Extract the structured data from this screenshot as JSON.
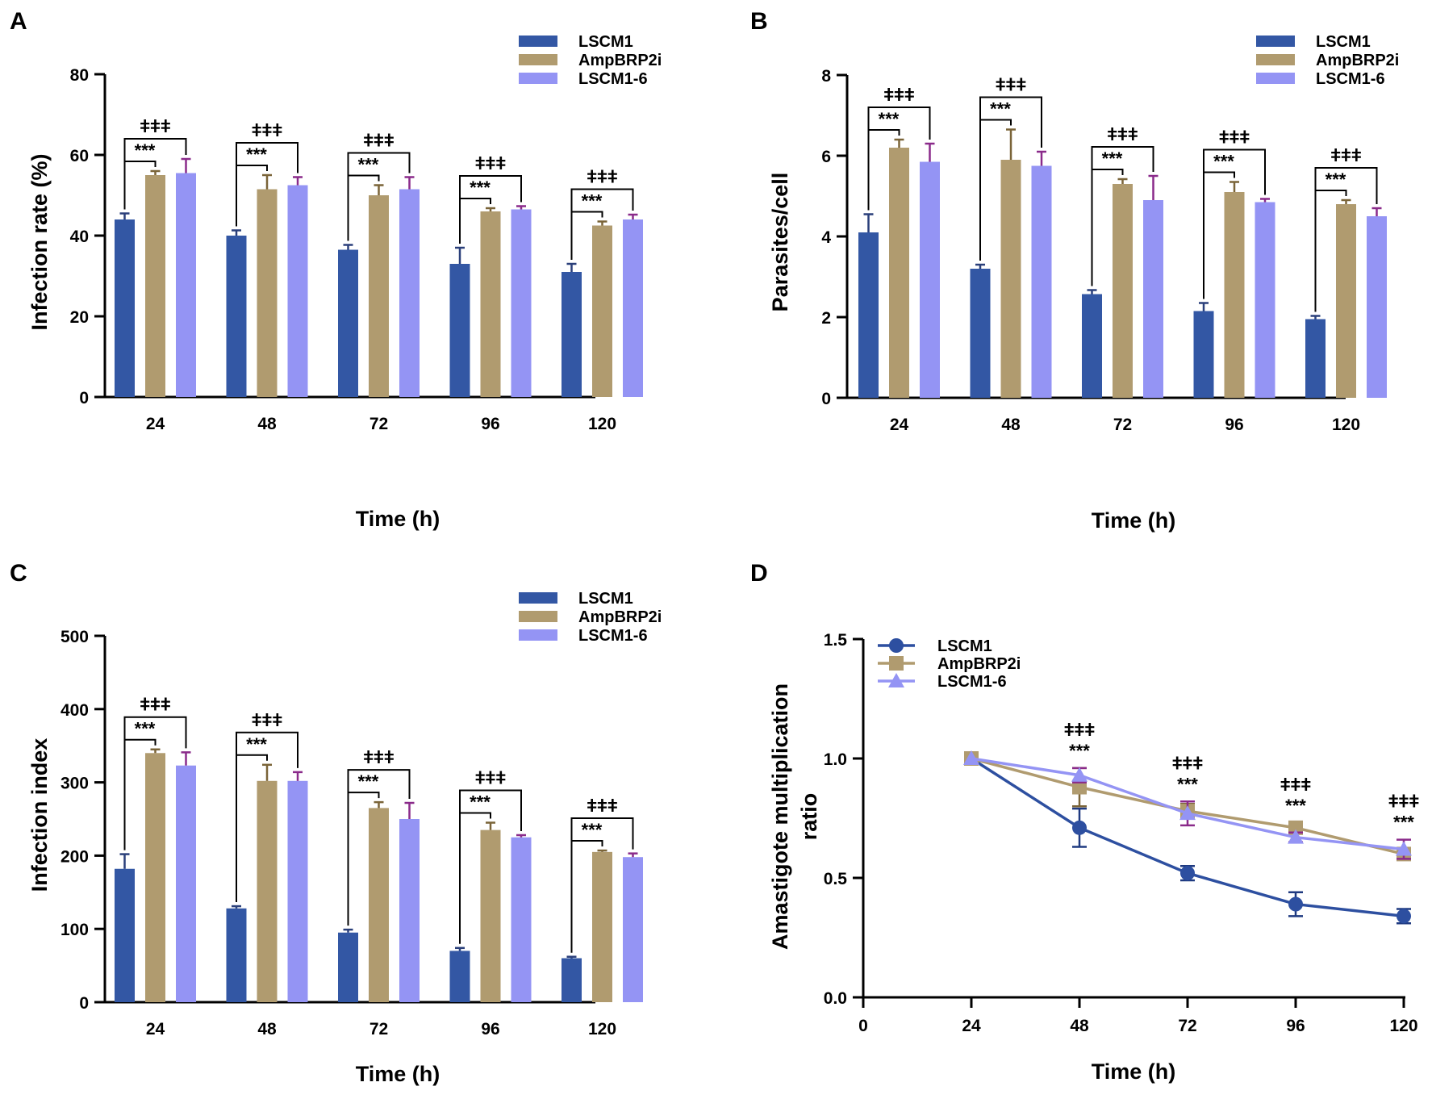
{
  "chart_data": [
    {
      "panel": "A",
      "type": "bar",
      "categories": [
        "24",
        "48",
        "72",
        "96",
        "120"
      ],
      "series": [
        {
          "name": "LSCM1",
          "color": "#3357a4",
          "errColor": "#2a3f7a",
          "values": [
            44,
            40,
            36.5,
            33,
            31
          ],
          "errors": [
            1.5,
            1.3,
            1.2,
            4,
            2
          ]
        },
        {
          "name": "AmpBRP2i",
          "color": "#b09b6f",
          "errColor": "#7a6438",
          "values": [
            55,
            51.5,
            50,
            46,
            42.5
          ],
          "errors": [
            1,
            3.5,
            2.5,
            0.8,
            1
          ]
        },
        {
          "name": "LSCM1-6",
          "color": "#9494f4",
          "errColor": "#8a2a8a",
          "values": [
            55.5,
            52.5,
            51.5,
            46.5,
            44
          ],
          "errors": [
            3.5,
            2,
            3,
            0.8,
            1.2
          ]
        }
      ],
      "ylabel": "Infection rate (%)",
      "xlabel": "Time (h)",
      "ylim": [
        0,
        80
      ],
      "yticks": [
        0,
        20,
        40,
        60,
        80
      ],
      "annotations": {
        "inner": "***",
        "outer": "ǂǂǂ"
      }
    },
    {
      "panel": "B",
      "type": "bar",
      "categories": [
        "24",
        "48",
        "72",
        "96",
        "120"
      ],
      "series": [
        {
          "name": "LSCM1",
          "color": "#3357a4",
          "errColor": "#2a3f7a",
          "values": [
            4.1,
            3.2,
            2.57,
            2.15,
            1.95
          ],
          "errors": [
            0.45,
            0.1,
            0.1,
            0.2,
            0.08
          ]
        },
        {
          "name": "AmpBRP2i",
          "color": "#b09b6f",
          "errColor": "#7a6438",
          "values": [
            6.2,
            5.9,
            5.3,
            5.1,
            4.8
          ],
          "errors": [
            0.2,
            0.75,
            0.12,
            0.25,
            0.1
          ]
        },
        {
          "name": "LSCM1-6",
          "color": "#9494f4",
          "errColor": "#8a2a8a",
          "values": [
            5.85,
            5.75,
            4.9,
            4.85,
            4.5
          ],
          "errors": [
            0.45,
            0.35,
            0.6,
            0.08,
            0.2
          ]
        }
      ],
      "ylabel": "Parasites/cell",
      "xlabel": "Time (h)",
      "ylim": [
        0,
        8
      ],
      "yticks": [
        0,
        2,
        4,
        6,
        8
      ],
      "annotations": {
        "inner": "***",
        "outer": "ǂǂǂ"
      }
    },
    {
      "panel": "C",
      "type": "bar",
      "categories": [
        "24",
        "48",
        "72",
        "96",
        "120"
      ],
      "series": [
        {
          "name": "LSCM1",
          "color": "#3357a4",
          "errColor": "#2a3f7a",
          "values": [
            182,
            128,
            95,
            70,
            60
          ],
          "errors": [
            20,
            3,
            4,
            4,
            2
          ]
        },
        {
          "name": "AmpBRP2i",
          "color": "#b09b6f",
          "errColor": "#7a6438",
          "values": [
            340,
            302,
            265,
            235,
            205
          ],
          "errors": [
            5,
            22,
            8,
            10,
            2
          ]
        },
        {
          "name": "LSCM1-6",
          "color": "#9494f4",
          "errColor": "#8a2a8a",
          "values": [
            323,
            302,
            250,
            225,
            198
          ],
          "errors": [
            18,
            12,
            22,
            3,
            5
          ]
        }
      ],
      "ylabel": "Infection index",
      "xlabel": "Time (h)",
      "ylim": [
        0,
        500
      ],
      "yticks": [
        0,
        100,
        200,
        300,
        400,
        500
      ],
      "annotations": {
        "inner": "***",
        "outer": "ǂǂǂ"
      }
    },
    {
      "panel": "D",
      "type": "line",
      "x": [
        24,
        48,
        72,
        96,
        120
      ],
      "xticks": [
        0,
        24,
        48,
        72,
        96,
        120
      ],
      "xlim": [
        0,
        120
      ],
      "series": [
        {
          "name": "LSCM1",
          "color": "#2d4fa0",
          "marker": "circle",
          "values": [
            1.0,
            0.71,
            0.52,
            0.39,
            0.34
          ],
          "errors": [
            0,
            0.08,
            0.03,
            0.05,
            0.03
          ]
        },
        {
          "name": "AmpBRP2i",
          "color": "#b09b6f",
          "marker": "square",
          "values": [
            1.0,
            0.88,
            0.78,
            0.71,
            0.6
          ],
          "errors": [
            0,
            0.08,
            0.03,
            0.02,
            0.02
          ]
        },
        {
          "name": "LSCM1-6",
          "color": "#9494f4",
          "marker": "triangle",
          "values": [
            1.0,
            0.93,
            0.77,
            0.67,
            0.62
          ],
          "errors": [
            0,
            0.03,
            0.05,
            0.02,
            0.04
          ]
        }
      ],
      "ylabel": "Amastigote multiplication\nratio",
      "xlabel": "Time (h)",
      "ylim": [
        0,
        1.5
      ],
      "yticks": [
        0.0,
        0.5,
        1.0,
        1.5
      ],
      "ytick_labels": [
        "0.0",
        "0.5",
        "1.0",
        "1.5"
      ],
      "annotations": {
        "inner": "***",
        "outer": "ǂǂǂ",
        "at_x": [
          48,
          72,
          96,
          120
        ]
      }
    }
  ]
}
